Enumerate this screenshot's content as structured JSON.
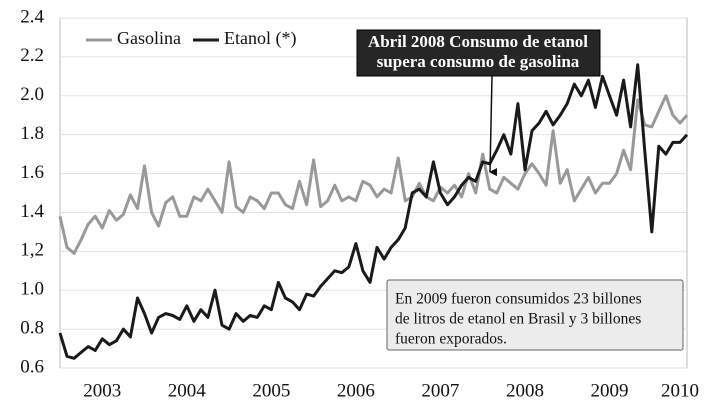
{
  "chart_data": {
    "type": "line",
    "categories": [
      null,
      null,
      null,
      null,
      null,
      null,
      "2003",
      null,
      null,
      null,
      null,
      null,
      null,
      null,
      null,
      null,
      null,
      null,
      "2004",
      null,
      null,
      null,
      null,
      null,
      null,
      null,
      null,
      null,
      null,
      null,
      "2005",
      null,
      null,
      null,
      null,
      null,
      null,
      null,
      null,
      null,
      null,
      null,
      "2006",
      null,
      null,
      null,
      null,
      null,
      null,
      null,
      null,
      null,
      null,
      null,
      "2007",
      null,
      null,
      null,
      null,
      null,
      null,
      null,
      null,
      null,
      null,
      null,
      "2008",
      null,
      null,
      null,
      null,
      null,
      null,
      null,
      null,
      null,
      null,
      null,
      "2009",
      null,
      null,
      null,
      null,
      null,
      null,
      null,
      null,
      null,
      "2010",
      null
    ],
    "series": [
      {
        "name": "Gasolina",
        "color": "#999999",
        "values": [
          1.38,
          1.22,
          1.19,
          1.26,
          1.34,
          1.38,
          1.32,
          1.41,
          1.36,
          1.39,
          1.49,
          1.42,
          1.64,
          1.4,
          1.33,
          1.45,
          1.48,
          1.38,
          1.38,
          1.48,
          1.46,
          1.52,
          1.46,
          1.4,
          1.66,
          1.43,
          1.4,
          1.48,
          1.46,
          1.42,
          1.5,
          1.5,
          1.44,
          1.42,
          1.56,
          1.44,
          1.67,
          1.43,
          1.46,
          1.54,
          1.46,
          1.48,
          1.46,
          1.56,
          1.54,
          1.48,
          1.52,
          1.5,
          1.68,
          1.46,
          1.48,
          1.55,
          1.48,
          1.46,
          1.53,
          1.5,
          1.54,
          1.48,
          1.6,
          1.5,
          1.7,
          1.52,
          1.5,
          1.58,
          1.55,
          1.52,
          1.6,
          1.65,
          1.6,
          1.54,
          1.82,
          1.55,
          1.62,
          1.46,
          1.52,
          1.58,
          1.5,
          1.55,
          1.55,
          1.6,
          1.72,
          1.62,
          1.98,
          1.85,
          1.84,
          1.92,
          2.0,
          1.9,
          1.86,
          1.9
        ]
      },
      {
        "name": "Etanol (*)",
        "color": "#1a1a1a",
        "values": [
          0.78,
          0.66,
          0.65,
          0.68,
          0.71,
          0.69,
          0.75,
          0.72,
          0.74,
          0.8,
          0.76,
          0.96,
          0.88,
          0.78,
          0.86,
          0.88,
          0.87,
          0.85,
          0.92,
          0.84,
          0.9,
          0.86,
          1.0,
          0.82,
          0.8,
          0.88,
          0.84,
          0.87,
          0.86,
          0.92,
          0.9,
          1.04,
          0.96,
          0.94,
          0.9,
          0.98,
          0.97,
          1.02,
          1.06,
          1.1,
          1.09,
          1.12,
          1.24,
          1.1,
          1.04,
          1.22,
          1.16,
          1.22,
          1.26,
          1.32,
          1.5,
          1.52,
          1.48,
          1.66,
          1.5,
          1.44,
          1.48,
          1.54,
          1.58,
          1.56,
          1.66,
          1.65,
          1.72,
          1.8,
          1.7,
          1.96,
          1.62,
          1.82,
          1.86,
          1.92,
          1.85,
          1.9,
          1.96,
          2.06,
          2.0,
          2.08,
          1.94,
          2.1,
          2.0,
          1.9,
          2.08,
          1.84,
          2.16,
          1.72,
          1.3,
          1.74,
          1.7,
          1.76,
          1.76,
          1.8
        ]
      }
    ],
    "ylim": [
      0.6,
      2.4
    ],
    "yticks": [
      0.6,
      0.8,
      {
        "value": 1.0,
        "label": "1.0"
      },
      {
        "value": 1.2,
        "label": "1,2"
      },
      1.4,
      1.6,
      1.8,
      {
        "value": 2.0,
        "label": "2.0"
      },
      2.2,
      2.4
    ],
    "grid": true,
    "legend": "top-left",
    "annotations": [
      [
        "Abril 2008 Consumo de etanol",
        "supera consumo de gasolina"
      ],
      [
        "En 2009 fueron consumidos 23 billones",
        "de litros de etanol en Brasil y 3 billones",
        "fueron exporados."
      ]
    ]
  }
}
